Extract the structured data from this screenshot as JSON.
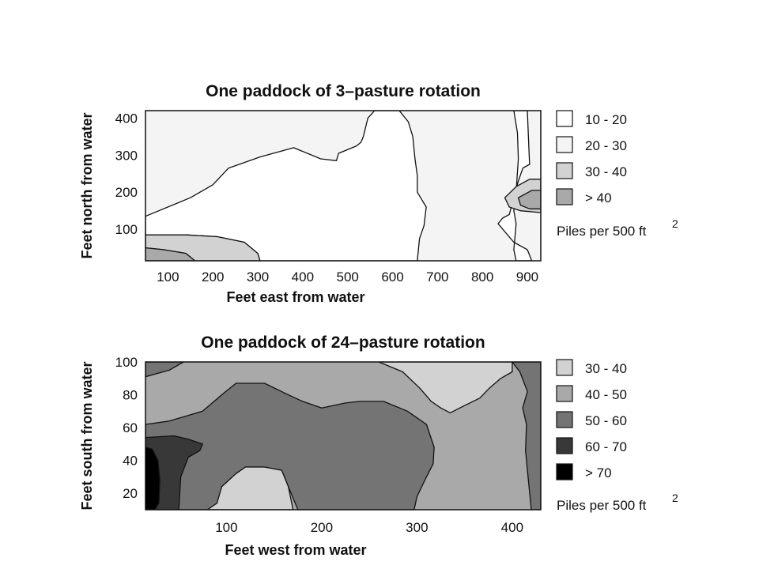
{
  "chart_data": [
    {
      "type": "heatmap",
      "subtype": "filled-contour",
      "title": "One paddock of 3–pasture rotation",
      "xlabel": "Feet east from water",
      "ylabel": "Feet north from water",
      "xlim": [
        50,
        930
      ],
      "ylim": [
        15,
        420
      ],
      "x_ticks": [
        "100",
        "200",
        "300",
        "400",
        "500",
        "600",
        "700",
        "800",
        "900"
      ],
      "y_ticks": [
        "100",
        "200",
        "300",
        "400"
      ],
      "legend": {
        "entries": [
          {
            "label": "10 - 20",
            "color": "#ffffff"
          },
          {
            "label": "20 - 30",
            "color": "#f4f4f4"
          },
          {
            "label": "30 - 40",
            "color": "#d2d2d2"
          },
          {
            "label": "> 40",
            "color": "#a9a9a9"
          }
        ],
        "unit": "Piles per 500 ft",
        "unit_sup": "2"
      },
      "background_color": "#f4f4f4",
      "regions": [
        {
          "class": "10 - 20",
          "points": [
            [
              50,
              135
            ],
            [
              150,
              185
            ],
            [
              200,
              220
            ],
            [
              235,
              265
            ],
            [
              305,
              295
            ],
            [
              380,
              320
            ],
            [
              440,
              290
            ],
            [
              475,
              285
            ],
            [
              480,
              305
            ],
            [
              520,
              325
            ],
            [
              530,
              335
            ],
            [
              535,
              350
            ],
            [
              545,
              400
            ],
            [
              560,
              420
            ],
            [
              615,
              420
            ],
            [
              635,
              390
            ],
            [
              645,
              350
            ],
            [
              650,
              290
            ],
            [
              655,
              245
            ],
            [
              655,
              200
            ],
            [
              675,
              160
            ],
            [
              670,
              110
            ],
            [
              660,
              75
            ],
            [
              655,
              15
            ],
            [
              305,
              15
            ],
            [
              300,
              35
            ],
            [
              270,
              65
            ],
            [
              210,
              80
            ],
            [
              140,
              85
            ],
            [
              50,
              85
            ]
          ]
        },
        {
          "class": "10 - 20",
          "points": [
            [
              870,
              420
            ],
            [
              900,
              420
            ],
            [
              905,
              275
            ],
            [
              890,
              265
            ],
            [
              880,
              230
            ],
            [
              870,
              185
            ],
            [
              860,
              140
            ],
            [
              845,
              130
            ],
            [
              835,
              115
            ],
            [
              870,
              65
            ],
            [
              900,
              45
            ],
            [
              910,
              15
            ],
            [
              875,
              15
            ],
            [
              870,
              45
            ],
            [
              875,
              115
            ],
            [
              870,
              150
            ],
            [
              875,
              200
            ],
            [
              880,
              290
            ],
            [
              878,
              360
            ]
          ]
        },
        {
          "class": "30 - 40",
          "points": [
            [
              50,
              85
            ],
            [
              140,
              85
            ],
            [
              210,
              80
            ],
            [
              270,
              65
            ],
            [
              300,
              35
            ],
            [
              305,
              15
            ],
            [
              160,
              15
            ],
            [
              140,
              35
            ],
            [
              90,
              45
            ],
            [
              50,
              50
            ]
          ]
        },
        {
          "class": "30 - 40",
          "points": [
            [
              930,
              235
            ],
            [
              905,
              235
            ],
            [
              875,
              215
            ],
            [
              850,
              185
            ],
            [
              860,
              160
            ],
            [
              885,
              150
            ],
            [
              930,
              145
            ]
          ]
        },
        {
          "class": "> 40",
          "points": [
            [
              50,
              50
            ],
            [
              90,
              45
            ],
            [
              140,
              35
            ],
            [
              160,
              15
            ],
            [
              50,
              15
            ]
          ]
        },
        {
          "class": "> 40",
          "points": [
            [
              930,
              205
            ],
            [
              910,
              205
            ],
            [
              880,
              185
            ],
            [
              885,
              165
            ],
            [
              905,
              155
            ],
            [
              930,
              155
            ]
          ]
        }
      ]
    },
    {
      "type": "heatmap",
      "subtype": "filled-contour",
      "title": "One paddock of 24–pasture rotation",
      "xlabel": "Feet west from water",
      "ylabel": "Feet south from water",
      "xlim": [
        15,
        430
      ],
      "ylim": [
        10,
        100
      ],
      "x_ticks": [
        "100",
        "200",
        "300",
        "400"
      ],
      "y_ticks": [
        "20",
        "40",
        "60",
        "80",
        "100"
      ],
      "legend": {
        "entries": [
          {
            "label": "30 - 40",
            "color": "#d2d2d2"
          },
          {
            "label": "40 - 50",
            "color": "#a9a9a9"
          },
          {
            "label": "50 - 60",
            "color": "#747474"
          },
          {
            "label": "60 - 70",
            "color": "#383838"
          },
          {
            "label": "> 70",
            "color": "#000000"
          }
        ],
        "unit": "Piles per 500 ft",
        "unit_sup": "2"
      },
      "background_color": "#a9a9a9",
      "regions": [
        {
          "class": "30 - 40",
          "points": [
            [
              300,
              100
            ],
            [
              400,
              100
            ],
            [
              400,
              94
            ],
            [
              388,
              90
            ],
            [
              376,
              84
            ],
            [
              366,
              78
            ],
            [
              345,
              72
            ],
            [
              335,
              69
            ],
            [
              325,
              72
            ],
            [
              315,
              76
            ],
            [
              303,
              84
            ],
            [
              285,
              94
            ],
            [
              260,
              100
            ]
          ]
        },
        {
          "class": "50 - 60",
          "points": [
            [
              15,
              100
            ],
            [
              55,
              100
            ],
            [
              40,
              95
            ],
            [
              15,
              91
            ]
          ]
        },
        {
          "class": "50 - 60",
          "points": [
            [
              400,
              100
            ],
            [
              430,
              100
            ],
            [
              430,
              10
            ],
            [
              420,
              10
            ],
            [
              417,
              28
            ],
            [
              414,
              46
            ],
            [
              415,
              62
            ],
            [
              411,
              72
            ],
            [
              416,
              82
            ],
            [
              408,
              94
            ]
          ]
        },
        {
          "class": "50 - 60",
          "points": [
            [
              15,
              62
            ],
            [
              40,
              64
            ],
            [
              75,
              70
            ],
            [
              95,
              80
            ],
            [
              110,
              87
            ],
            [
              140,
              87
            ],
            [
              165,
              80
            ],
            [
              180,
              76
            ],
            [
              200,
              72
            ],
            [
              225,
              75
            ],
            [
              240,
              76
            ],
            [
              265,
              76
            ],
            [
              290,
              70
            ],
            [
              310,
              62
            ],
            [
              318,
              48
            ],
            [
              317,
              38
            ],
            [
              310,
              30
            ],
            [
              300,
              18
            ],
            [
              297,
              10
            ],
            [
              175,
              10
            ],
            [
              165,
              24
            ],
            [
              158,
              34
            ],
            [
              140,
              36
            ],
            [
              120,
              36
            ],
            [
              110,
              32
            ],
            [
              95,
              24
            ],
            [
              90,
              10
            ],
            [
              15,
              10
            ]
          ]
        },
        {
          "class": "30 - 40",
          "points": [
            [
              80,
              10
            ],
            [
              170,
              10
            ],
            [
              165,
              24
            ],
            [
              158,
              34
            ],
            [
              140,
              36
            ],
            [
              120,
              36
            ],
            [
              110,
              32
            ],
            [
              95,
              24
            ],
            [
              90,
              14
            ]
          ]
        },
        {
          "class": "60 - 70",
          "points": [
            [
              15,
              54
            ],
            [
              45,
              55
            ],
            [
              60,
              53
            ],
            [
              75,
              50
            ],
            [
              72,
              46
            ],
            [
              60,
              42
            ],
            [
              52,
              30
            ],
            [
              50,
              10
            ],
            [
              15,
              10
            ]
          ]
        },
        {
          "class": "> 70",
          "points": [
            [
              15,
              48
            ],
            [
              22,
              47
            ],
            [
              28,
              40
            ],
            [
              30,
              28
            ],
            [
              29,
              14
            ],
            [
              25,
              10
            ],
            [
              15,
              10
            ]
          ]
        }
      ]
    }
  ]
}
